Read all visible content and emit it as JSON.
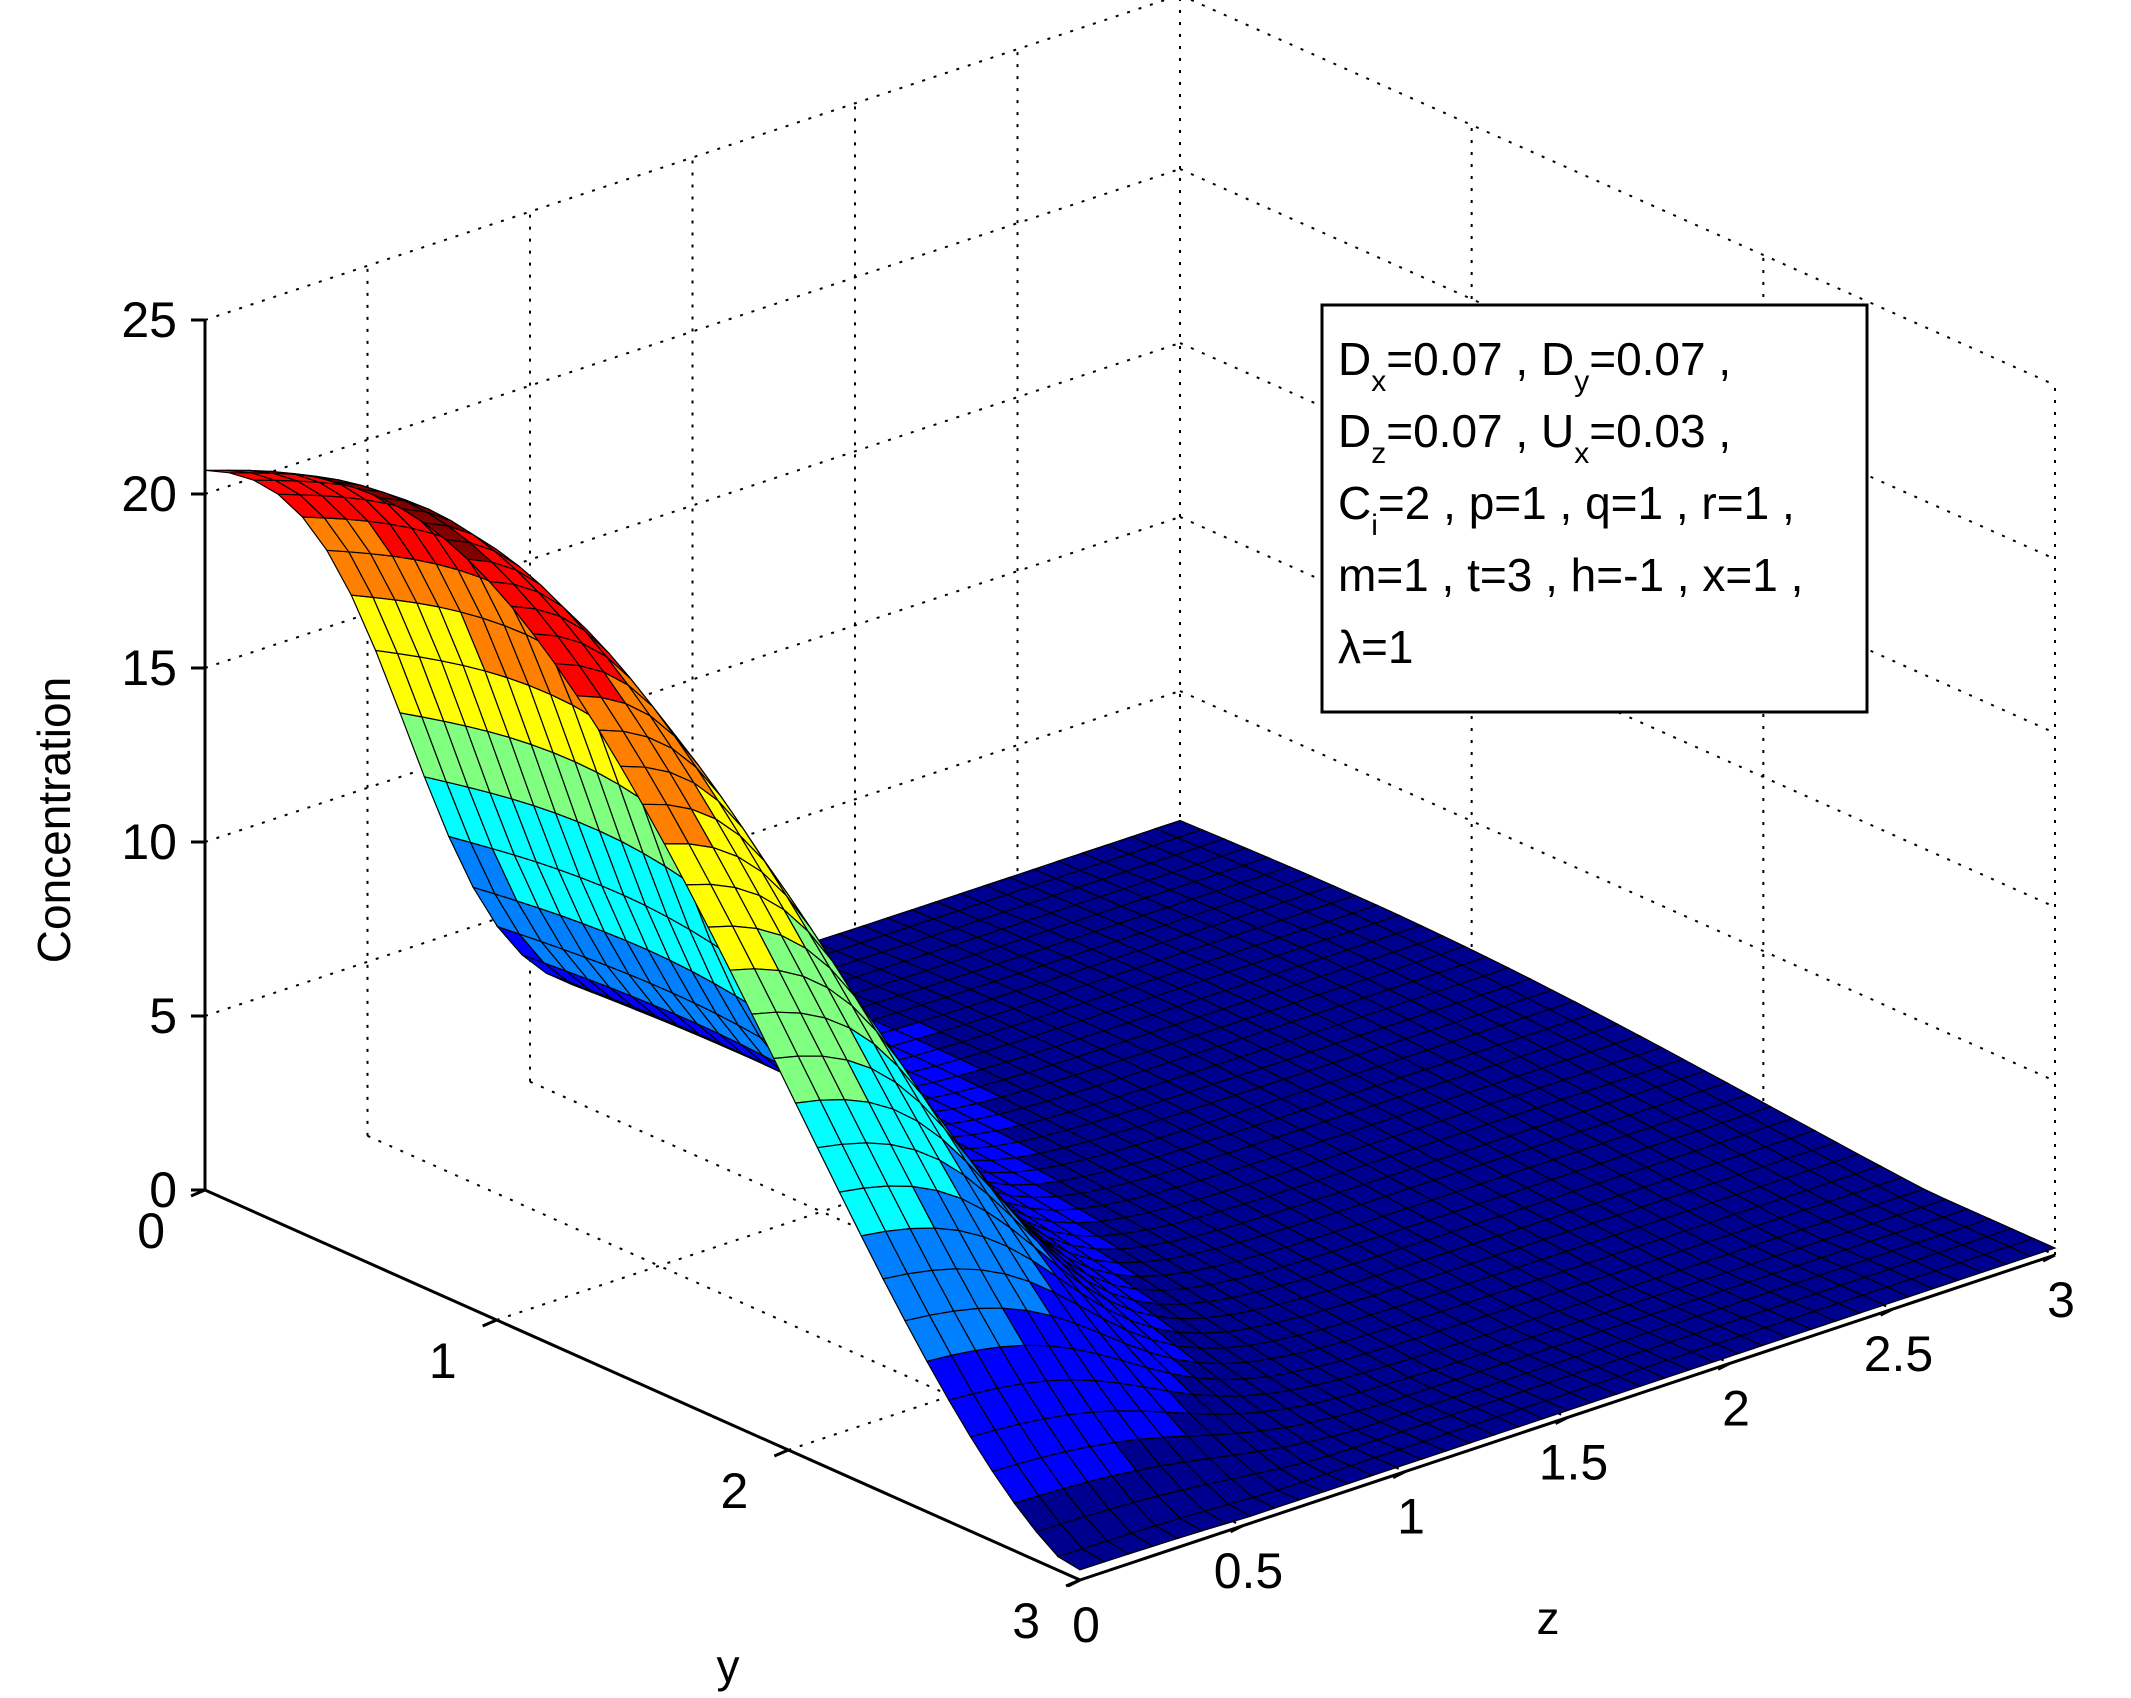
{
  "chart_data": {
    "type": "surface",
    "title": "",
    "xlabel": "z",
    "ylabel": "y",
    "zlabel": "Concentration",
    "xlim": [
      0,
      3
    ],
    "ylim": [
      0,
      3
    ],
    "zlim": [
      0,
      25
    ],
    "x_ticks": [
      "0",
      "0.5",
      "1",
      "1.5",
      "2",
      "2.5",
      "3"
    ],
    "y_ticks": [
      "0",
      "1",
      "2",
      "3"
    ],
    "z_ticks": [
      "0",
      "5",
      "10",
      "15",
      "20",
      "25"
    ],
    "grid": true,
    "colormap": "jet",
    "colormap_colors": [
      "#00008f",
      "#0000ff",
      "#0080ff",
      "#00ffff",
      "#80ff80",
      "#ffff00",
      "#ff8000",
      "#ff0000",
      "#800000"
    ],
    "surface": {
      "description_of_values": "Concentration at y = 0 edge is about 21.3 for all z; along y it rises slightly to a peak near y ≈ 0.6, then falls toward ~0 at y = 3; along z it drops sharply past z ≈ 0.6 to a low plateau (~1).",
      "edge_y0": 21.3,
      "peak_value": 22.8,
      "far_corner_value": 0.3
    },
    "legend": [
      {
        "parts": [
          [
            "D",
            "x",
            "=0.07 , "
          ],
          [
            "D",
            "y",
            "=0.07 ,"
          ]
        ]
      },
      {
        "parts": [
          [
            "D",
            "z",
            "=0.07 , "
          ],
          [
            "U",
            "x",
            "=0.03 ,"
          ]
        ]
      },
      {
        "parts": [
          [
            "C",
            "i",
            "=2 , p=1 , q=1 , r=1 ,"
          ]
        ]
      },
      {
        "parts": [
          [
            "",
            "",
            "m=1 , t=3 , h=-1 , x=1 ,"
          ]
        ]
      },
      {
        "parts": [
          [
            "",
            "",
            "λ=1"
          ]
        ]
      }
    ]
  }
}
